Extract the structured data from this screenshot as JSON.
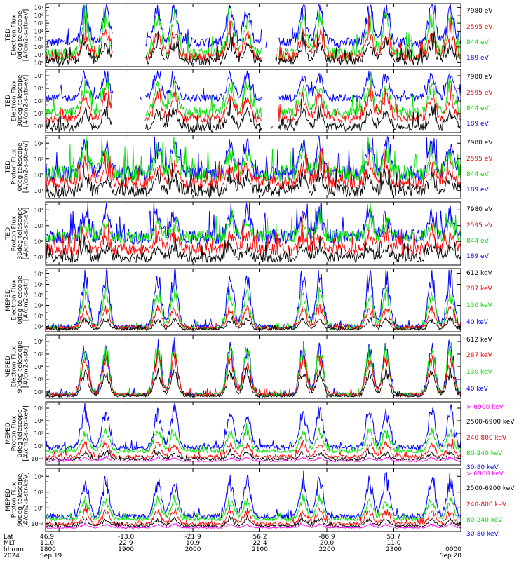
{
  "chart_data": {
    "type": "line",
    "x_axis": {
      "rows": [
        {
          "label": "Lat",
          "values": [
            "46.9",
            "-13.0",
            "-21.9",
            "56.2",
            "-86.9",
            "53.7",
            ""
          ]
        },
        {
          "label": "MLT",
          "values": [
            "11.0",
            "22.9",
            "10.9",
            "22.4",
            "20.0",
            "11.0",
            ""
          ]
        },
        {
          "label": "hhmm",
          "values": [
            "1800",
            "1900",
            "2000",
            "2100",
            "2200",
            "2300",
            "0000"
          ]
        },
        {
          "label": "2024",
          "values": [
            "Sep 19",
            "",
            "",
            "",
            "",
            "",
            "Sep 20"
          ]
        }
      ],
      "major_ticks": [
        "1800",
        "1900",
        "2000",
        "2100",
        "2200",
        "2300",
        "0000"
      ]
    },
    "colors": {
      "black": "#000000",
      "red": "#ff0000",
      "green": "#00e000",
      "blue": "#0000ff",
      "magenta": "#ff00ff"
    },
    "panels": [
      {
        "ylabel": [
          "TED",
          "Electron Flux",
          "0deg telescope",
          "[#/cm2-s-str-eV]"
        ],
        "yticks": [
          "10⁰",
          "10¹",
          "10²",
          "10³",
          "10⁴",
          "10⁵",
          "10⁶",
          "10⁷"
        ],
        "ylim_exp": [
          0,
          7
        ],
        "legend": [
          {
            "label": "7980 eV",
            "color": "black"
          },
          {
            "label": "2595 eV",
            "color": "red"
          },
          {
            "label": "844 eV",
            "color": "green"
          },
          {
            "label": "189 eV",
            "color": "blue"
          }
        ]
      },
      {
        "ylabel": [
          "TED",
          "Electron Flux",
          "30deg telescope",
          "[#/cm2-s-str-eV]"
        ],
        "yticks": [
          "10¹",
          "10²",
          "10³",
          "10⁴",
          "10⁵"
        ],
        "ylim_exp": [
          0.5,
          5.8
        ],
        "legend": [
          {
            "label": "7980 eV",
            "color": "black"
          },
          {
            "label": "2595 eV",
            "color": "red"
          },
          {
            "label": "844 eV",
            "color": "green"
          },
          {
            "label": "189 eV",
            "color": "blue"
          }
        ]
      },
      {
        "ylabel": [
          "TED",
          "Proton Flux",
          "0deg telescope",
          "[#/cm2-s-str-eV]"
        ],
        "yticks": [
          "10¹",
          "10²",
          "10³",
          "10⁴"
        ],
        "ylim_exp": [
          0.3,
          5
        ],
        "legend": [
          {
            "label": "7980 eV",
            "color": "black"
          },
          {
            "label": "2595 eV",
            "color": "red"
          },
          {
            "label": "844 eV",
            "color": "green"
          },
          {
            "label": "189 eV",
            "color": "blue"
          }
        ]
      },
      {
        "ylabel": [
          "TED",
          "Proton Flux",
          "30deg telescope",
          "[#/cm2-s-str-eV]"
        ],
        "yticks": [
          "10¹",
          "10²",
          "10³",
          "10⁴"
        ],
        "ylim_exp": [
          0.3,
          5
        ],
        "legend": [
          {
            "label": "7980 eV",
            "color": "black"
          },
          {
            "label": "2595 eV",
            "color": "red"
          },
          {
            "label": "844 eV",
            "color": "green"
          },
          {
            "label": "189 eV",
            "color": "blue"
          }
        ]
      },
      {
        "ylabel": [
          "MEPED",
          "Electron Flux",
          "0deg telescope",
          "[#/cm2-s-str]"
        ],
        "yticks": [
          "10²",
          "10³",
          "10⁴",
          "10⁵",
          "10⁶",
          "10⁷"
        ],
        "ylim_exp": [
          1.6,
          7
        ],
        "legend": [
          {
            "label": "612 keV",
            "color": "black"
          },
          {
            "label": "287 keV",
            "color": "red"
          },
          {
            "label": "130 keV",
            "color": "green"
          },
          {
            "label": "40 keV",
            "color": "blue"
          }
        ]
      },
      {
        "ylabel": [
          "MEPED",
          "Electron Flux",
          "90deg telescope",
          "[#/cm2-s-str]"
        ],
        "yticks": [
          "10²",
          "10³",
          "10⁴",
          "10⁵",
          "10⁶"
        ],
        "ylim_exp": [
          1.6,
          6.5
        ],
        "legend": [
          {
            "label": "612 keV",
            "color": "black"
          },
          {
            "label": "287 keV",
            "color": "red"
          },
          {
            "label": "130 keV",
            "color": "green"
          },
          {
            "label": "40 keV",
            "color": "blue"
          }
        ]
      },
      {
        "ylabel": [
          "MEPED",
          "Proton Flux",
          "0deg telescope",
          "[#/cm2-s-str-keV]"
        ],
        "yticks": [
          "10⁻²",
          "10⁰",
          "10²",
          "10⁴",
          "10⁶"
        ],
        "ylim_exp": [
          -2.5,
          6
        ],
        "legend": [
          {
            "label": "> 6900 keV",
            "color": "magenta"
          },
          {
            "label": "2500-6900 keV",
            "color": "black"
          },
          {
            "label": "240-800 keV",
            "color": "red"
          },
          {
            "label": "80-240 keV",
            "color": "green"
          },
          {
            "label": "30-80 keV",
            "color": "blue"
          }
        ]
      },
      {
        "ylabel": [
          "MEPED",
          "Proton Flux",
          "90deg telescope",
          "[#/cm2-s-str-keV]"
        ],
        "yticks": [
          "10⁻²",
          "10⁰",
          "10²",
          "10⁴"
        ],
        "ylim_exp": [
          -2.5,
          5.5
        ],
        "legend": [
          {
            "label": "> 6900 keV",
            "color": "magenta"
          },
          {
            "label": "2500-6900 keV",
            "color": "black"
          },
          {
            "label": "240-800 keV",
            "color": "red"
          },
          {
            "label": "80-240 keV",
            "color": "green"
          },
          {
            "label": "30-80 keV",
            "color": "blue"
          }
        ]
      }
    ]
  }
}
